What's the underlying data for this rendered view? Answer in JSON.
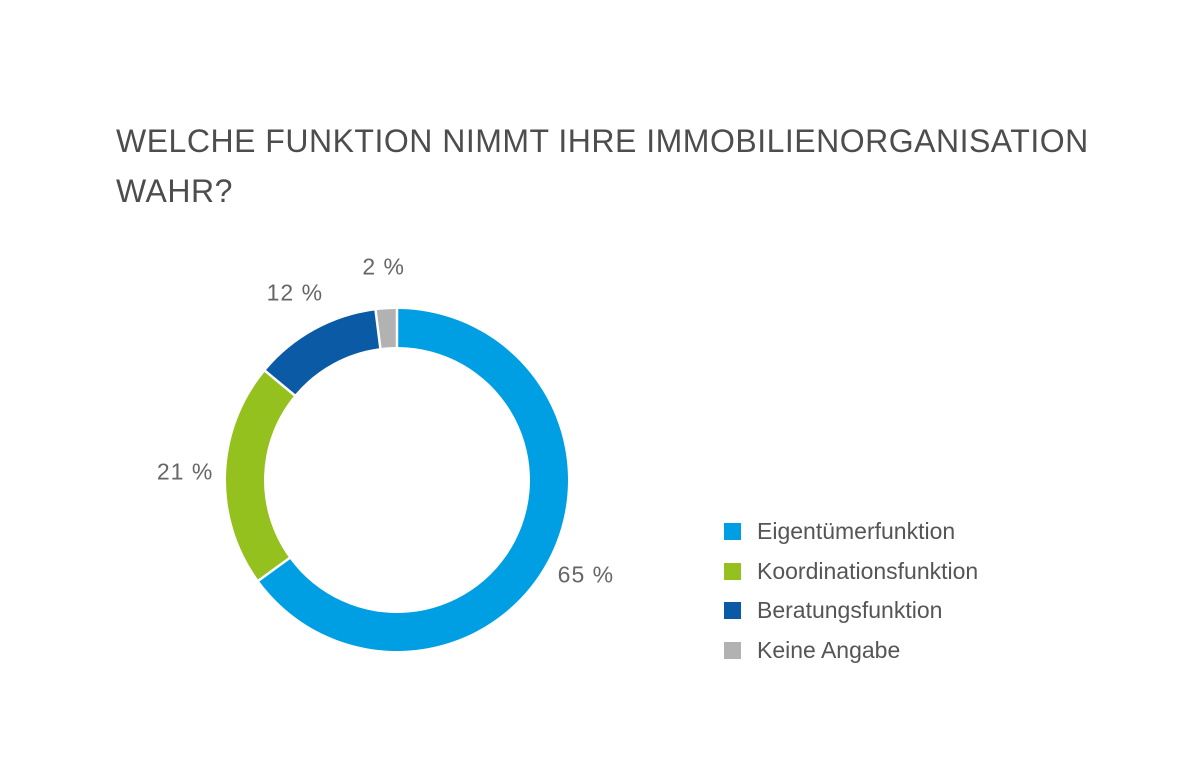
{
  "title_lines": [
    "WELCHE FUNKTION NIMMT IHRE IMMOBILIENORGANISATION",
    "WAHR?"
  ],
  "chart_data": {
    "type": "pie",
    "variant": "donut",
    "title": "WELCHE FUNKTION NIMMT IHRE IMMOBILIENORGANISATION WAHR?",
    "categories": [
      "Eigentümerfunktion",
      "Koordinationsfunktion",
      "Beratungsfunktion",
      "Keine Angabe"
    ],
    "values": [
      65,
      21,
      12,
      2
    ],
    "unit": "%",
    "data_labels": [
      "65 %",
      "21 %",
      "12 %",
      "2 %"
    ],
    "colors": [
      "#009fe3",
      "#95c11f",
      "#0a5aa5",
      "#b2b2b2"
    ],
    "legend_position": "right-bottom"
  }
}
